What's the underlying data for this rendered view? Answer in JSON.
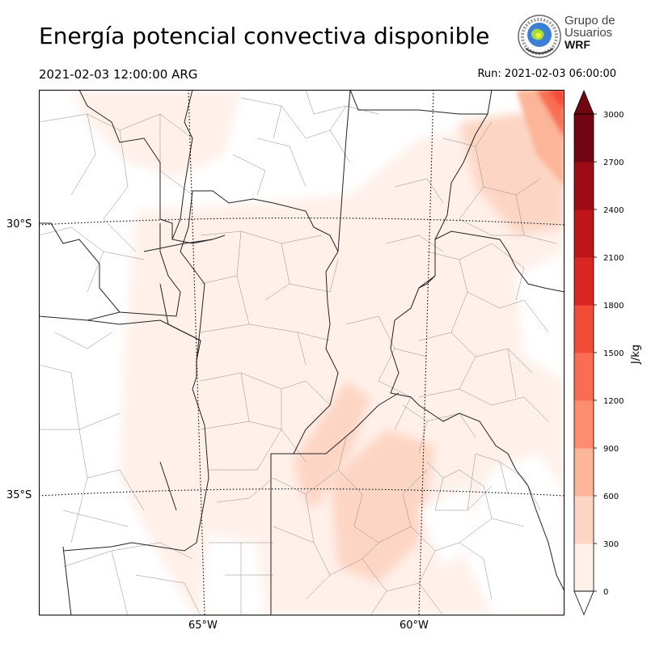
{
  "header": {
    "title": "Energía potencial convectiva disponible",
    "valid_time": "2021-02-03 12:00:00 ARG",
    "run": "Run: 2021-02-03 06:00:00"
  },
  "logo": {
    "line1": "Grupo de",
    "line2": "Usuarios",
    "line3": "WRF"
  },
  "axes": {
    "lat_labels": [
      "30°S",
      "35°S"
    ],
    "lon_labels": [
      "65°W",
      "60°W"
    ]
  },
  "colorbar": {
    "unit": "J/kg",
    "ticks": [
      "3000",
      "2700",
      "2400",
      "2100",
      "1800",
      "1500",
      "1200",
      "900",
      "600",
      "300",
      "0"
    ],
    "colors": [
      "#fff0ea",
      "#fdd5c4",
      "#fcb599",
      "#fc8e6f",
      "#f96e52",
      "#f14c36",
      "#d92524",
      "#be151b",
      "#9c0c14",
      "#6f0611"
    ],
    "extend": "both"
  },
  "colors": {
    "border_province": "#222222",
    "border_department": "#8c8c8c",
    "graticule": "#000000"
  }
}
